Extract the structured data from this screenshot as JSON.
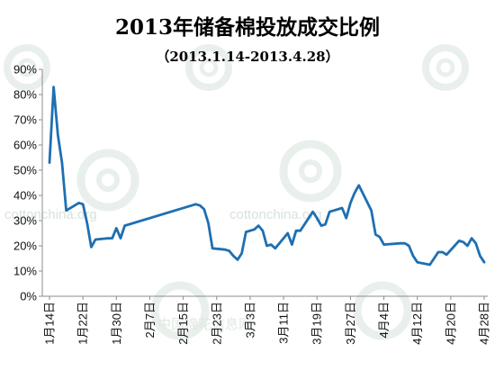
{
  "chart_data": {
    "type": "line",
    "title": "2013年储备棉投放成交比例",
    "subtitle": "（2013.1.14-2013.4.28）",
    "yticks": [
      "0%",
      "10%",
      "20%",
      "30%",
      "40%",
      "50%",
      "60%",
      "70%",
      "80%",
      "90%"
    ],
    "ylim": [
      0,
      0.9
    ],
    "xticks": [
      "1月14日",
      "1月22日",
      "1月30日",
      "2月7日",
      "2月15日",
      "2月23日",
      "3月3日",
      "3月11日",
      "3月19日",
      "3月27日",
      "4月4日",
      "4月12日",
      "4月20日",
      "4月28日"
    ],
    "xlim": [
      "2013-01-14",
      "2013-04-28"
    ],
    "grid": false,
    "watermark": [
      "cottonchina.org",
      "中国棉花信息网"
    ],
    "series": [
      {
        "color": "#1f6fb2",
        "points": [
          [
            "2013-01-14",
            0.53
          ],
          [
            "2013-01-15",
            0.83
          ],
          [
            "2013-01-16",
            0.64
          ],
          [
            "2013-01-17",
            0.53
          ],
          [
            "2013-01-18",
            0.34
          ],
          [
            "2013-01-21",
            0.37
          ],
          [
            "2013-01-22",
            0.365
          ],
          [
            "2013-01-23",
            0.29
          ],
          [
            "2013-01-24",
            0.195
          ],
          [
            "2013-01-25",
            0.225
          ],
          [
            "2013-01-28",
            0.23
          ],
          [
            "2013-01-29",
            0.23
          ],
          [
            "2013-01-30",
            0.27
          ],
          [
            "2013-01-31",
            0.23
          ],
          [
            "2013-02-01",
            0.28
          ],
          [
            "2013-02-18",
            0.365
          ],
          [
            "2013-02-19",
            0.36
          ],
          [
            "2013-02-20",
            0.345
          ],
          [
            "2013-02-21",
            0.29
          ],
          [
            "2013-02-22",
            0.19
          ],
          [
            "2013-02-25",
            0.185
          ],
          [
            "2013-02-26",
            0.18
          ],
          [
            "2013-02-27",
            0.16
          ],
          [
            "2013-02-28",
            0.145
          ],
          [
            "2013-03-01",
            0.17
          ],
          [
            "2013-03-02",
            0.255
          ],
          [
            "2013-03-04",
            0.265
          ],
          [
            "2013-03-05",
            0.28
          ],
          [
            "2013-03-06",
            0.26
          ],
          [
            "2013-03-07",
            0.2
          ],
          [
            "2013-03-08",
            0.205
          ],
          [
            "2013-03-09",
            0.19
          ],
          [
            "2013-03-12",
            0.25
          ],
          [
            "2013-03-13",
            0.205
          ],
          [
            "2013-03-14",
            0.26
          ],
          [
            "2013-03-15",
            0.26
          ],
          [
            "2013-03-18",
            0.335
          ],
          [
            "2013-03-19",
            0.31
          ],
          [
            "2013-03-20",
            0.28
          ],
          [
            "2013-03-21",
            0.285
          ],
          [
            "2013-03-22",
            0.335
          ],
          [
            "2013-03-25",
            0.35
          ],
          [
            "2013-03-26",
            0.31
          ],
          [
            "2013-03-27",
            0.37
          ],
          [
            "2013-03-28",
            0.41
          ],
          [
            "2013-03-29",
            0.44
          ],
          [
            "2013-04-01",
            0.34
          ],
          [
            "2013-04-02",
            0.245
          ],
          [
            "2013-04-03",
            0.235
          ],
          [
            "2013-04-04",
            0.205
          ],
          [
            "2013-04-08",
            0.21
          ],
          [
            "2013-04-09",
            0.21
          ],
          [
            "2013-04-10",
            0.2
          ],
          [
            "2013-04-11",
            0.16
          ],
          [
            "2013-04-12",
            0.135
          ],
          [
            "2013-04-15",
            0.125
          ],
          [
            "2013-04-16",
            0.15
          ],
          [
            "2013-04-17",
            0.175
          ],
          [
            "2013-04-18",
            0.175
          ],
          [
            "2013-04-19",
            0.165
          ],
          [
            "2013-04-22",
            0.22
          ],
          [
            "2013-04-23",
            0.215
          ],
          [
            "2013-04-24",
            0.2
          ],
          [
            "2013-04-25",
            0.23
          ],
          [
            "2013-04-26",
            0.21
          ],
          [
            "2013-04-27",
            0.16
          ],
          [
            "2013-04-28",
            0.135
          ]
        ]
      }
    ]
  }
}
